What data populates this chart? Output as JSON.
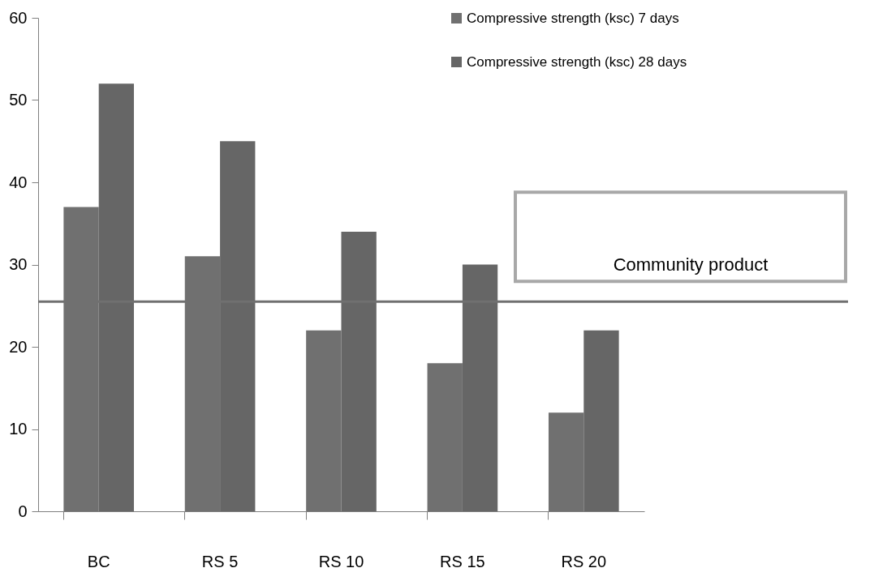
{
  "chart_data": {
    "type": "bar",
    "categories": [
      "BC",
      "RS 5",
      "RS 10",
      "RS 15",
      "RS 20"
    ],
    "series": [
      {
        "name": "Compressive strength (ksc) 7 days",
        "color": "#707070",
        "values": [
          37,
          31,
          22,
          18,
          12
        ]
      },
      {
        "name": "Compressive strength (ksc) 28 days",
        "color": "#666666",
        "values": [
          52,
          45,
          34,
          30,
          22
        ]
      }
    ],
    "ylim": [
      0,
      60
    ],
    "yticks": [
      0,
      10,
      20,
      30,
      40,
      50,
      60
    ],
    "grid": false,
    "legend": "top right",
    "ref_lines": [
      {
        "axis": "y",
        "value": 25.5,
        "label": "Community product",
        "color": "#707070"
      }
    ]
  }
}
